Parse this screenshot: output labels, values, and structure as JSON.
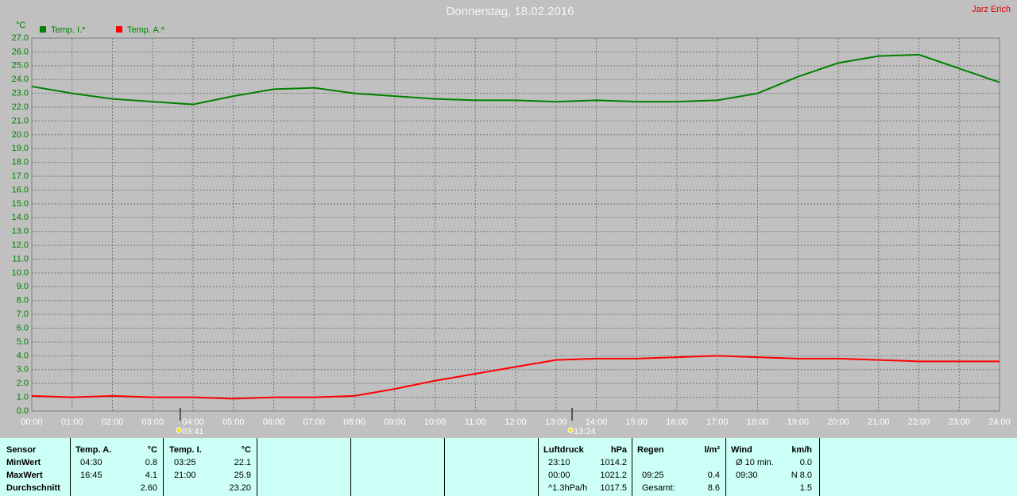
{
  "chart_data": {
    "type": "line",
    "title": "Donnerstag, 18.02.2016",
    "author": "Jarz Erich",
    "y_label": "°C",
    "x": [
      "00:00",
      "01:00",
      "02:00",
      "03:00",
      "04:00",
      "05:00",
      "06:00",
      "07:00",
      "08:00",
      "09:00",
      "10:00",
      "11:00",
      "12:00",
      "13:00",
      "14:00",
      "15:00",
      "16:00",
      "17:00",
      "18:00",
      "19:00",
      "20:00",
      "21:00",
      "22:00",
      "23:00",
      "24:00"
    ],
    "series": [
      {
        "name": "Temp. I.*",
        "color": "#008000",
        "values": [
          23.5,
          23.0,
          22.6,
          22.4,
          22.2,
          22.8,
          23.3,
          23.4,
          23.0,
          22.8,
          22.6,
          22.5,
          22.5,
          22.4,
          22.5,
          22.4,
          22.4,
          22.5,
          23.0,
          24.2,
          25.2,
          25.7,
          25.8,
          24.8,
          23.8
        ]
      },
      {
        "name": "Temp. A.*",
        "color": "#ff0000",
        "values": [
          1.1,
          1.0,
          1.1,
          1.0,
          1.0,
          0.9,
          1.0,
          1.0,
          1.1,
          1.6,
          2.2,
          2.7,
          3.2,
          3.7,
          3.8,
          3.8,
          3.9,
          4.0,
          3.9,
          3.8,
          3.8,
          3.7,
          3.6,
          3.6,
          3.6
        ]
      }
    ],
    "ylim": [
      0,
      27
    ],
    "yticks": [
      {
        "value": 0,
        "label": "0.0"
      },
      {
        "value": 1,
        "label": "1.0"
      },
      {
        "value": 2,
        "label": "2.0"
      },
      {
        "value": 3,
        "label": "3.0"
      },
      {
        "value": 4,
        "label": "4.0"
      },
      {
        "value": 5,
        "label": "5.0"
      },
      {
        "value": 6,
        "label": "6.0"
      },
      {
        "value": 7,
        "label": "7.0"
      },
      {
        "value": 8,
        "label": "8.0"
      },
      {
        "value": 9,
        "label": "9.0"
      },
      {
        "value": 10,
        "label": "10.0"
      },
      {
        "value": 11,
        "label": "11.0"
      },
      {
        "value": 12,
        "label": "12.0"
      },
      {
        "value": 13,
        "label": "13.0"
      },
      {
        "value": 14,
        "label": "14.0"
      },
      {
        "value": 15,
        "label": "15.0"
      },
      {
        "value": 16,
        "label": "16.0"
      },
      {
        "value": 17,
        "label": "17.0"
      },
      {
        "value": 18,
        "label": "18.0"
      },
      {
        "value": 19,
        "label": "19.0"
      },
      {
        "value": 20,
        "label": "20.0"
      },
      {
        "value": 21,
        "label": "21.0"
      },
      {
        "value": 22,
        "label": "22.0"
      },
      {
        "value": 23,
        "label": "23.0"
      },
      {
        "value": 24,
        "label": "24.0"
      },
      {
        "value": 25,
        "label": "25.0"
      },
      {
        "value": 26,
        "label": "26.0"
      },
      {
        "value": 27,
        "label": "27.0"
      }
    ],
    "grid": true,
    "legend": "top-left",
    "sun_markers": [
      "03:41",
      "13:24"
    ]
  },
  "stats_table": {
    "sensor": {
      "title": "Sensor",
      "rows": [
        "MinWert",
        "MaxWert",
        "Durchschnitt"
      ]
    },
    "panels": [
      {
        "title": "Temp. A.",
        "unit": "°C",
        "rows": [
          {
            "time": "04:30",
            "value": "0.8"
          },
          {
            "time": "16:45",
            "value": "4.1"
          },
          {
            "value": "2.60"
          }
        ]
      },
      {
        "title": "Temp. I.",
        "unit": "°C",
        "rows": [
          {
            "time": "03:25",
            "value": "22.1"
          },
          {
            "time": "21:00",
            "value": "25.9"
          },
          {
            "value": "23.20"
          }
        ]
      },
      {
        "title": "Luftdruck",
        "unit": "hPa",
        "rows": [
          {
            "time": "23:10",
            "value": "1014.2"
          },
          {
            "time": "00:00",
            "value": "1021.2"
          },
          {
            "time": "^1.3hPa/h",
            "value": "1017.5"
          }
        ]
      },
      {
        "title": "Regen",
        "unit": "l/m²",
        "rows": [
          null,
          {
            "time": "09:25",
            "value": "0.4"
          },
          {
            "time": "Gesamt:",
            "value": "8.6"
          }
        ]
      },
      {
        "title": "Wind",
        "unit": "km/h",
        "rows": [
          {
            "time": "Ø 10 min.",
            "value": "0.0"
          },
          {
            "time": "09:30",
            "value": "N 8.0"
          },
          {
            "value": "1.5"
          }
        ]
      }
    ]
  }
}
